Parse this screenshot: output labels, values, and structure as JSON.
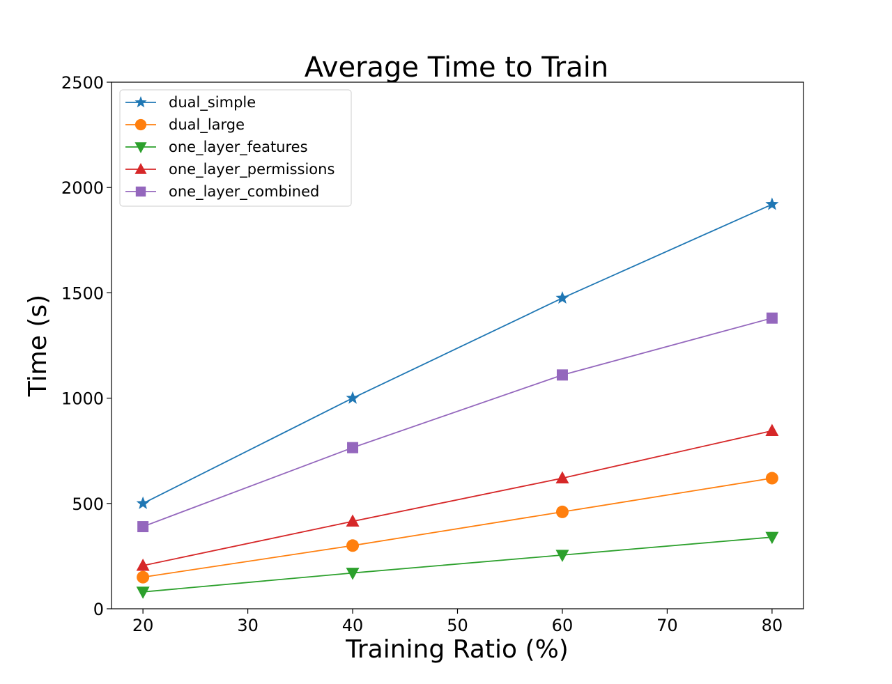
{
  "chart_data": {
    "type": "line",
    "title": "Average Time to Train",
    "xlabel": "Training Ratio (%)",
    "ylabel": "Time (s)",
    "xlim": [
      17,
      83
    ],
    "ylim": [
      0,
      2500
    ],
    "x_ticks": [
      20,
      30,
      40,
      50,
      60,
      70,
      80
    ],
    "y_ticks": [
      0,
      500,
      1000,
      1500,
      2000,
      2500
    ],
    "grid": false,
    "legend_position": "top-left",
    "x": [
      20,
      40,
      60,
      80
    ],
    "series": [
      {
        "name": "dual_simple",
        "values": [
          500,
          1000,
          1475,
          1920
        ],
        "color": "#1f77b4",
        "marker": "star"
      },
      {
        "name": "dual_large",
        "values": [
          150,
          300,
          460,
          620
        ],
        "color": "#ff7f0e",
        "marker": "circle"
      },
      {
        "name": "one_layer_features",
        "values": [
          80,
          170,
          255,
          340
        ],
        "color": "#2ca02c",
        "marker": "triangle-down"
      },
      {
        "name": "one_layer_permissions",
        "values": [
          205,
          415,
          620,
          845
        ],
        "color": "#d62728",
        "marker": "triangle-up"
      },
      {
        "name": "one_layer_combined",
        "values": [
          390,
          765,
          1110,
          1380
        ],
        "color": "#9467bd",
        "marker": "square"
      }
    ]
  }
}
